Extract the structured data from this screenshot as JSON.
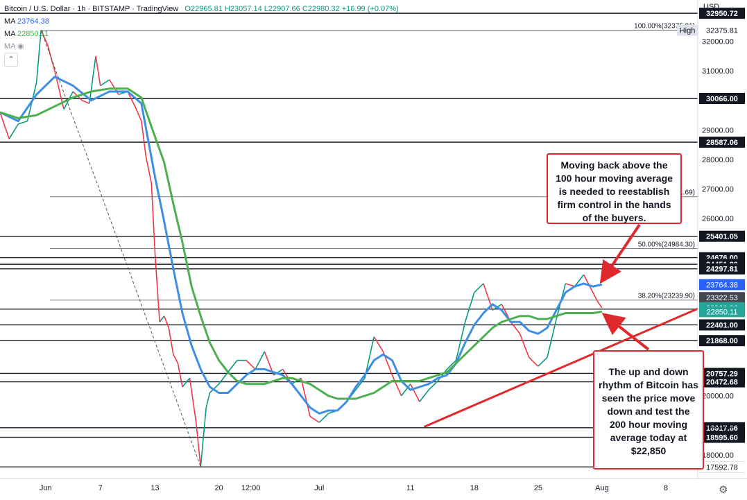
{
  "legend": {
    "symbol": "Bitcoin / U.S. Dollar · 1h · BITSTAMP · TradingView",
    "ohlc": "O22965.81 H23057.14 L22907.66 C22980.32 +16.99 (+0.07%)",
    "ma1_label": "MA",
    "ma1_value": "23764.38",
    "ma2_label": "MA",
    "ma2_value": "22850.11",
    "ma3_label": "MA"
  },
  "currency": "USD",
  "colors": {
    "up": "#089981",
    "down": "#f23645",
    "ma100": "#3d8ee6",
    "ma200": "#4caf50",
    "trend": "#e0292c",
    "current": "#26a69a",
    "ma100_badge": "#2962ff",
    "ma200_badge": "#26a69a",
    "line_dark": "#131722"
  },
  "chart_data": {
    "type": "line",
    "title": "Bitcoin / U.S. Dollar · 1h · BITSTAMP",
    "ylim": [
      17200,
      33400
    ],
    "y_ticks": [
      18000,
      19000,
      20000,
      26000,
      27000,
      28000,
      29000,
      31000,
      32000
    ],
    "y_tick_labels": [
      "18000.00",
      "19000.00",
      "20000.00",
      "26000.00",
      "27000.00",
      "28000.00",
      "29000.00",
      "31000.00",
      "32000.00"
    ],
    "x_ticks": [
      {
        "label": "Jun",
        "x": 2.0
      },
      {
        "label": "7",
        "x": 8.0
      },
      {
        "label": "13",
        "x": 14.0
      },
      {
        "label": "20",
        "x": 21.0
      },
      {
        "label": "12:00",
        "x": 24.5
      },
      {
        "label": "Jul",
        "x": 32.0
      },
      {
        "label": "11",
        "x": 42.0
      },
      {
        "label": "18",
        "x": 49.0
      },
      {
        "label": "25",
        "x": 56.0
      },
      {
        "label": "Aug",
        "x": 63.0
      },
      {
        "label": "8",
        "x": 70.0
      }
    ],
    "xlim": [
      -3.0,
      73.5
    ],
    "horizontal_levels": [
      {
        "value": 32950.72,
        "label": "32950.72"
      },
      {
        "value": 30066.0,
        "label": "30066.00"
      },
      {
        "value": 28587.06,
        "label": "28587.06"
      },
      {
        "value": 25401.05,
        "label": "25401.05"
      },
      {
        "value": 24676.0,
        "label": "24676.00"
      },
      {
        "value": 24451.8,
        "label": "24451.80"
      },
      {
        "value": 24297.81,
        "label": "24297.81"
      },
      {
        "value": 22937.12,
        "label": "22937.12"
      },
      {
        "value": 22401.0,
        "label": "22401.00"
      },
      {
        "value": 21868.0,
        "label": "21868.00"
      },
      {
        "value": 20757.29,
        "label": "20757.29"
      },
      {
        "value": 20472.68,
        "label": "20472.68"
      },
      {
        "value": 18917.86,
        "label": "18917.86"
      },
      {
        "value": 18595.6,
        "label": "18595.60"
      },
      {
        "value": 17592.78,
        "label": "17592.78"
      }
    ],
    "fib_levels": [
      {
        "value": 32375.81,
        "label": "100.00%(32375.81)"
      },
      {
        "value": 26738.69,
        "label": "..69)"
      },
      {
        "value": 24984.3,
        "label": "50.00%(24984.30)"
      },
      {
        "value": 23239.9,
        "label": "38.20%(23239.90)"
      }
    ],
    "badges": [
      {
        "value": 32375.81,
        "label": "32375.81",
        "tag": "High",
        "style": "high"
      },
      {
        "value": 23764.38,
        "label": "23764.38",
        "style": "ma100"
      },
      {
        "value": 23322.53,
        "label": "23322.53",
        "style": "dark"
      },
      {
        "value": 22980.32,
        "label": "22980.32",
        "style": "current"
      },
      {
        "value": 22850.11,
        "label": "22850.11",
        "style": "ma200"
      },
      {
        "value": 17592.78,
        "label": "17592.78",
        "style": "low"
      }
    ],
    "price_path": [
      [
        -3,
        29600
      ],
      [
        -2,
        28700
      ],
      [
        -1,
        29200
      ],
      [
        0,
        29300
      ],
      [
        1,
        30600
      ],
      [
        1.5,
        32380
      ],
      [
        2.2,
        31900
      ],
      [
        3,
        31000
      ],
      [
        4,
        29700
      ],
      [
        5,
        30300
      ],
      [
        6,
        30000
      ],
      [
        6.8,
        29900
      ],
      [
        7.5,
        31500
      ],
      [
        8,
        30500
      ],
      [
        9,
        30700
      ],
      [
        10,
        30200
      ],
      [
        11,
        30300
      ],
      [
        11.8,
        29800
      ],
      [
        12.5,
        29300
      ],
      [
        13,
        28100
      ],
      [
        13.6,
        27200
      ],
      [
        14,
        24800
      ],
      [
        14.5,
        22500
      ],
      [
        15,
        22700
      ],
      [
        15.5,
        22300
      ],
      [
        16,
        21400
      ],
      [
        16.5,
        21100
      ],
      [
        17,
        20300
      ],
      [
        17.8,
        20600
      ],
      [
        18.5,
        19100
      ],
      [
        19,
        17600
      ],
      [
        19.6,
        19600
      ],
      [
        20,
        20100
      ],
      [
        21,
        20400
      ],
      [
        22,
        20800
      ],
      [
        23,
        21200
      ],
      [
        24,
        21200
      ],
      [
        25,
        20900
      ],
      [
        26,
        21500
      ],
      [
        27,
        20700
      ],
      [
        28,
        20900
      ],
      [
        29,
        20400
      ],
      [
        30,
        20600
      ],
      [
        31,
        19300
      ],
      [
        32,
        19100
      ],
      [
        33,
        19400
      ],
      [
        34,
        19500
      ],
      [
        35,
        19800
      ],
      [
        36,
        20200
      ],
      [
        37,
        20600
      ],
      [
        38,
        22000
      ],
      [
        39,
        21500
      ],
      [
        40,
        20700
      ],
      [
        41,
        20000
      ],
      [
        42,
        20400
      ],
      [
        43,
        19800
      ],
      [
        44,
        20200
      ],
      [
        45,
        20500
      ],
      [
        46,
        20900
      ],
      [
        47,
        21200
      ],
      [
        48,
        22500
      ],
      [
        49,
        23500
      ],
      [
        50,
        23800
      ],
      [
        51,
        22900
      ],
      [
        52,
        23100
      ],
      [
        53,
        22500
      ],
      [
        54,
        22100
      ],
      [
        55,
        21300
      ],
      [
        56,
        21000
      ],
      [
        57,
        21300
      ],
      [
        58,
        22600
      ],
      [
        59,
        23800
      ],
      [
        60,
        23700
      ],
      [
        61,
        24100
      ],
      [
        62,
        23500
      ],
      [
        62.5,
        23200
      ],
      [
        63,
        22980
      ]
    ],
    "series": [
      {
        "name": "MA 23764.38",
        "color": "#3d8ee6",
        "points": [
          [
            -3,
            29600
          ],
          [
            -1,
            29300
          ],
          [
            1,
            30200
          ],
          [
            3,
            30800
          ],
          [
            5,
            30500
          ],
          [
            7,
            30000
          ],
          [
            9,
            30300
          ],
          [
            11,
            30300
          ],
          [
            12.5,
            29900
          ],
          [
            14,
            27400
          ],
          [
            15,
            25900
          ],
          [
            16,
            24300
          ],
          [
            17,
            22800
          ],
          [
            18,
            21700
          ],
          [
            19,
            20900
          ],
          [
            20,
            20300
          ],
          [
            21,
            20100
          ],
          [
            22,
            20100
          ],
          [
            23,
            20400
          ],
          [
            24,
            20700
          ],
          [
            25,
            20900
          ],
          [
            26,
            20900
          ],
          [
            27,
            20800
          ],
          [
            28,
            20700
          ],
          [
            29,
            20400
          ],
          [
            30,
            20000
          ],
          [
            31,
            19600
          ],
          [
            32,
            19400
          ],
          [
            33,
            19500
          ],
          [
            34,
            19500
          ],
          [
            35,
            19800
          ],
          [
            36,
            20300
          ],
          [
            37,
            20700
          ],
          [
            38,
            21200
          ],
          [
            39,
            21400
          ],
          [
            40,
            21200
          ],
          [
            41,
            20500
          ],
          [
            42,
            20200
          ],
          [
            43,
            20300
          ],
          [
            44,
            20400
          ],
          [
            45,
            20600
          ],
          [
            46,
            20700
          ],
          [
            47,
            21100
          ],
          [
            48,
            21800
          ],
          [
            49,
            22400
          ],
          [
            50,
            22800
          ],
          [
            51,
            23100
          ],
          [
            52,
            22900
          ],
          [
            53,
            22500
          ],
          [
            54,
            22500
          ],
          [
            55,
            22200
          ],
          [
            56,
            22100
          ],
          [
            57,
            22300
          ],
          [
            58,
            22900
          ],
          [
            59,
            23500
          ],
          [
            60,
            23700
          ],
          [
            61,
            23800
          ],
          [
            62,
            23700
          ],
          [
            63,
            23764
          ]
        ]
      },
      {
        "name": "MA 22850.11",
        "color": "#4caf50",
        "points": [
          [
            -3,
            29600
          ],
          [
            -1,
            29400
          ],
          [
            1,
            29500
          ],
          [
            3,
            29800
          ],
          [
            5,
            30100
          ],
          [
            7,
            30300
          ],
          [
            9,
            30400
          ],
          [
            11,
            30400
          ],
          [
            12.5,
            30100
          ],
          [
            13.5,
            29200
          ],
          [
            15,
            27900
          ],
          [
            16,
            26500
          ],
          [
            17,
            25200
          ],
          [
            18,
            23700
          ],
          [
            19,
            22700
          ],
          [
            20,
            21800
          ],
          [
            21,
            21200
          ],
          [
            22,
            20800
          ],
          [
            23,
            20500
          ],
          [
            24,
            20400
          ],
          [
            25,
            20400
          ],
          [
            26,
            20400
          ],
          [
            27,
            20500
          ],
          [
            28,
            20600
          ],
          [
            29,
            20600
          ],
          [
            30,
            20500
          ],
          [
            31,
            20400
          ],
          [
            32,
            20200
          ],
          [
            33,
            20000
          ],
          [
            34,
            19900
          ],
          [
            35,
            19900
          ],
          [
            36,
            19900
          ],
          [
            37,
            20000
          ],
          [
            38,
            20100
          ],
          [
            39,
            20300
          ],
          [
            40,
            20500
          ],
          [
            41,
            20500
          ],
          [
            42,
            20500
          ],
          [
            43,
            20500
          ],
          [
            44,
            20600
          ],
          [
            45,
            20700
          ],
          [
            46,
            20800
          ],
          [
            47,
            21100
          ],
          [
            48,
            21400
          ],
          [
            49,
            21700
          ],
          [
            50,
            22000
          ],
          [
            51,
            22300
          ],
          [
            52,
            22500
          ],
          [
            53,
            22600
          ],
          [
            54,
            22700
          ],
          [
            55,
            22700
          ],
          [
            56,
            22600
          ],
          [
            57,
            22600
          ],
          [
            58,
            22700
          ],
          [
            59,
            22800
          ],
          [
            60,
            22800
          ],
          [
            61,
            22800
          ],
          [
            62,
            22800
          ],
          [
            63,
            22850
          ]
        ]
      }
    ],
    "trendline": [
      [
        43.5,
        18950
      ],
      [
        73.5,
        22950
      ]
    ],
    "dashed_line": [
      [
        1.5,
        32380
      ],
      [
        19,
        17600
      ]
    ],
    "annotations": [
      {
        "id": "note1",
        "text": "Moving back above the 100 hour moving average is needed to reestablish firm control in the hands of the buyers.",
        "arrow_to": [
          62.8,
          23760
        ]
      },
      {
        "id": "note2",
        "text": "The up and down rhythm of Bitcoin has seen the price move down and test the 200 hour moving average today at $22,850",
        "arrow_to": [
          63.0,
          22930
        ]
      }
    ]
  }
}
